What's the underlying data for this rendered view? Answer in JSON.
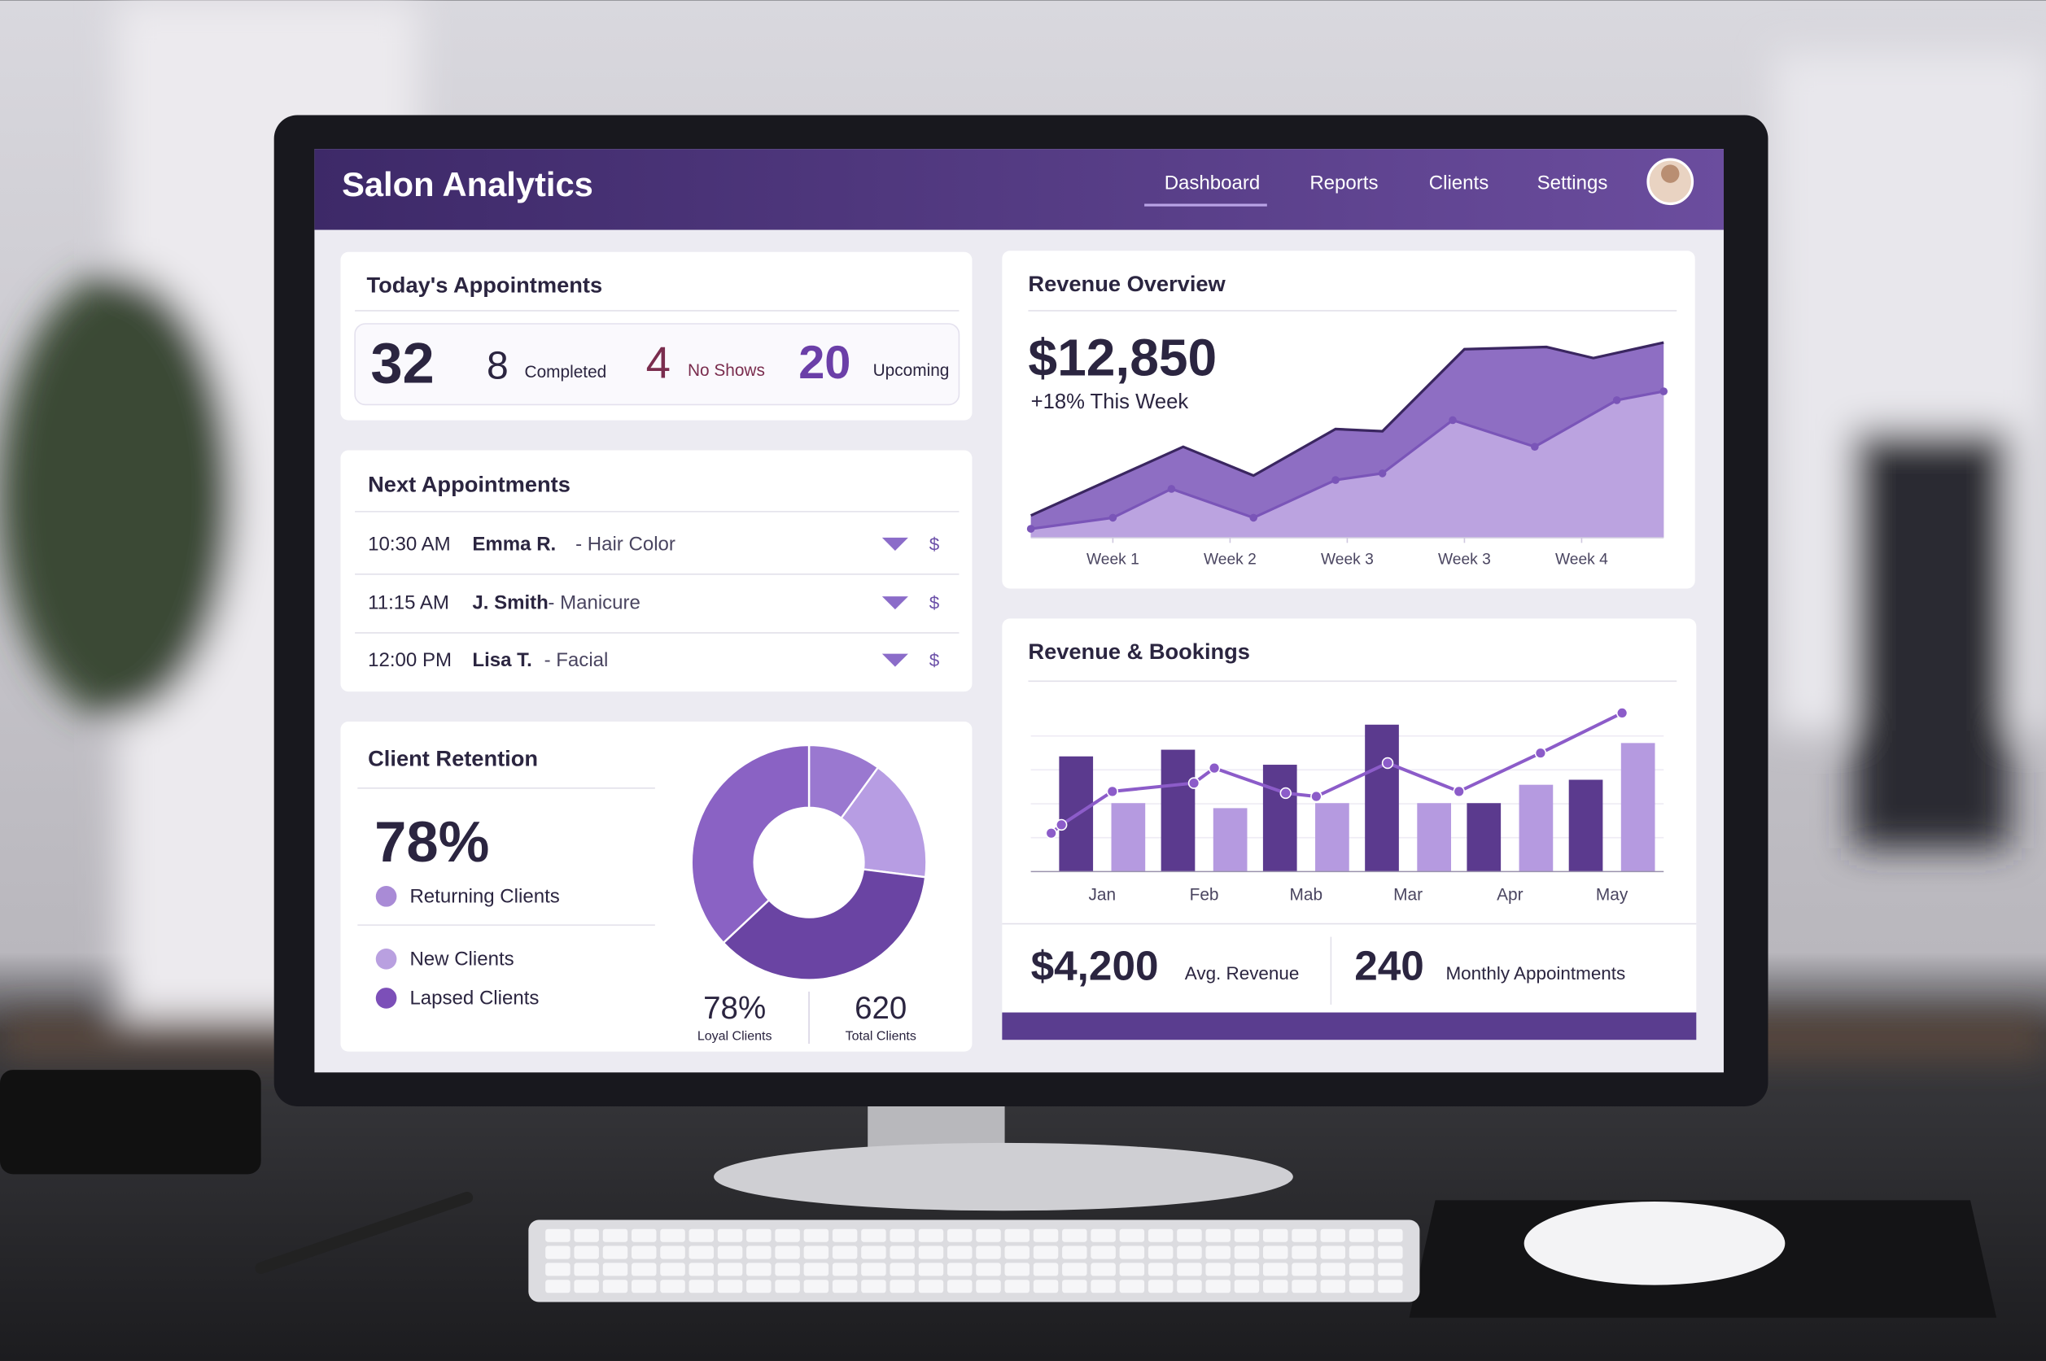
{
  "header": {
    "title": "Salon Analytics",
    "nav": [
      "Dashboard",
      "Reports",
      "Clients",
      "Settings"
    ]
  },
  "todays_appointments": {
    "title": "Today's Appointments",
    "total": 32,
    "completed": 8,
    "completed_label": "Completed",
    "no_shows": 4,
    "no_shows_label": "No Shows",
    "upcoming": 20,
    "upcoming_label": "Upcoming"
  },
  "next_appointments": {
    "title": "Next Appointments",
    "rows": [
      {
        "time": "10:30 AM",
        "client": "Emma R.",
        "service": "- Hair Color",
        "price": "$"
      },
      {
        "time": "11:15 AM",
        "client": "J. Smith",
        "service": "- Manicure",
        "price": "$"
      },
      {
        "time": "12:00 PM",
        "client": "Lisa T.",
        "service": "- Facial",
        "price": "$"
      }
    ]
  },
  "client_retention": {
    "title": "Client Retention",
    "rate": "78%",
    "legend": [
      {
        "label": "Returning Clients",
        "color": "#a98bd6"
      },
      {
        "label": "New Clients",
        "color": "#b9a0e0"
      },
      {
        "label": "Lapsed Clients",
        "color": "#7c4fb8"
      }
    ],
    "stats": [
      {
        "value": "78%",
        "label": "Loyal Clients"
      },
      {
        "value": 620,
        "label": "Total Clients"
      }
    ]
  },
  "revenue_overview": {
    "title": "Revenue Overview",
    "amount": "$12,850",
    "change": "+18% This Week"
  },
  "revenue_bookings": {
    "title": "Revenue & Bookings",
    "stats": [
      {
        "value": "$4,200",
        "label": "Avg. Revenue"
      },
      {
        "value": 240,
        "label": "Monthly Appointments"
      }
    ]
  },
  "chart_data": [
    {
      "type": "pie",
      "values": [
        10,
        17,
        36,
        37
      ],
      "colors": [
        "#9a78d0",
        "#b79de3",
        "#6a44a3",
        "#8a62c4"
      ]
    },
    {
      "type": "area",
      "xlim": [
        0.3,
        5.7
      ],
      "ylim": [
        0,
        100
      ],
      "xticks": [
        {
          "value": 1,
          "label": "Week 1"
        },
        {
          "value": 2,
          "label": "Week 2"
        },
        {
          "value": 3,
          "label": "Week 3"
        },
        {
          "value": 4,
          "label": "Week 3"
        },
        {
          "value": 5,
          "label": "Week 4"
        }
      ],
      "series": [
        {
          "color": "#7a55b8",
          "x": [
            0.3,
            1.6,
            2.2,
            2.9,
            3.3,
            4.0,
            4.7,
            5.1,
            5.7
          ],
          "values": [
            10,
            41,
            28,
            49,
            48,
            85,
            86,
            81,
            88
          ]
        },
        {
          "color": "#c9b6ea",
          "x": [
            0.3,
            1.0,
            1.5,
            2.2,
            2.9,
            3.3,
            3.9,
            4.6,
            5.3,
            5.7
          ],
          "values": [
            4,
            9,
            22,
            9,
            26,
            29,
            53,
            41,
            62,
            66
          ]
        }
      ]
    },
    {
      "type": "bar",
      "categories": [
        "Jan",
        "Feb",
        "Mab",
        "Mar",
        "Apr",
        "May"
      ],
      "xlim": [
        -0.7,
        5.7
      ],
      "ylim": [
        0,
        100
      ],
      "series": [
        {
          "color": "#5b3a8e",
          "values": [
            69,
            73,
            64,
            88,
            41,
            55
          ]
        },
        {
          "color": "#b59ae0",
          "values": [
            41,
            38,
            41,
            41,
            52,
            77
          ]
        },
        {
          "type": "line",
          "color": "#8c5cc9",
          "x": [
            -0.5,
            -0.4,
            0.1,
            0.9,
            1.1,
            1.8,
            2.1,
            2.8,
            3.5,
            4.3,
            5.1
          ],
          "values": [
            23,
            28,
            48,
            53,
            62,
            47,
            45,
            65,
            48,
            71,
            95
          ]
        }
      ]
    }
  ]
}
